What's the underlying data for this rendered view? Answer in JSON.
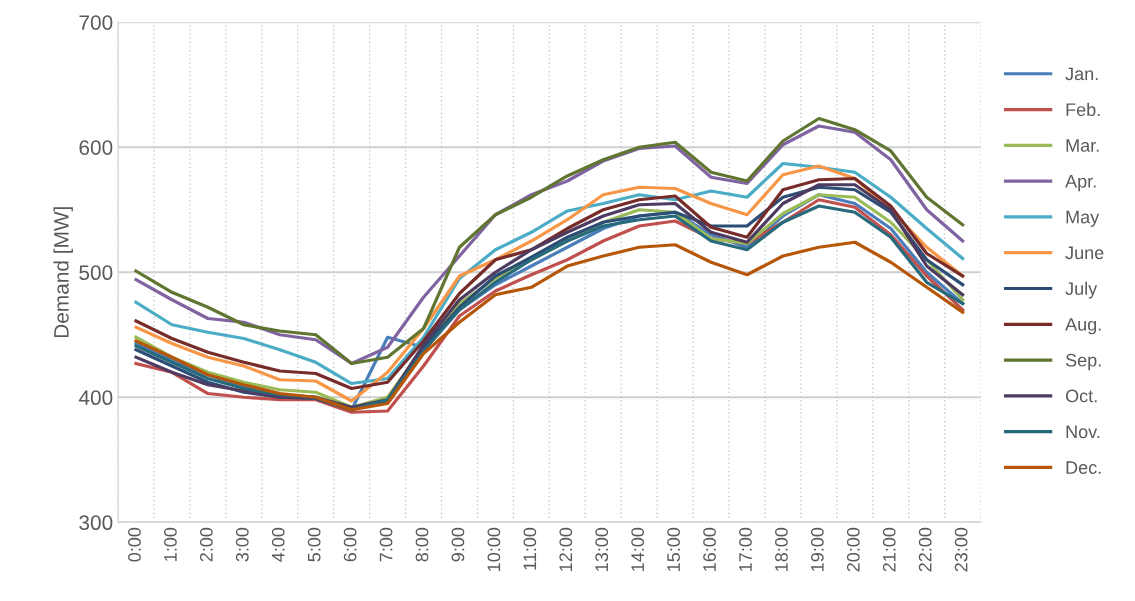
{
  "chart_data": {
    "type": "line",
    "ylabel": "Demand [MW]",
    "categories": [
      "0:00",
      "1:00",
      "2:00",
      "3:00",
      "4:00",
      "5:00",
      "6:00",
      "7:00",
      "8:00",
      "9:00",
      "10:00",
      "11:00",
      "12:00",
      "13:00",
      "14:00",
      "15:00",
      "16:00",
      "17:00",
      "18:00",
      "19:00",
      "20:00",
      "21:00",
      "22:00",
      "23:00"
    ],
    "ylim": [
      300,
      700
    ],
    "yticks": [
      300,
      400,
      500,
      600,
      700
    ],
    "grid": true,
    "legend": "right",
    "marker": "none",
    "line_style": "solid",
    "series": [
      {
        "name": "Jan.",
        "color": "#4a7ebb",
        "values": [
          443,
          430,
          418,
          408,
          402,
          400,
          390,
          448,
          440,
          470,
          490,
          505,
          520,
          535,
          545,
          548,
          530,
          520,
          545,
          562,
          555,
          535,
          500,
          475
        ]
      },
      {
        "name": "Feb.",
        "color": "#c0504d",
        "values": [
          427,
          420,
          403,
          400,
          398,
          398,
          388,
          389,
          425,
          465,
          485,
          498,
          510,
          525,
          537,
          541,
          527,
          523,
          540,
          558,
          552,
          530,
          497,
          470
        ]
      },
      {
        "name": "Mar.",
        "color": "#9bbb59",
        "values": [
          448,
          432,
          420,
          412,
          406,
          404,
          392,
          400,
          440,
          475,
          495,
          510,
          525,
          540,
          550,
          548,
          527,
          523,
          547,
          562,
          560,
          540,
          510,
          478
        ]
      },
      {
        "name": "Apr.",
        "color": "#8064a2",
        "values": [
          494,
          478,
          463,
          460,
          450,
          446,
          427,
          440,
          480,
          513,
          546,
          562,
          573,
          589,
          599,
          601,
          576,
          571,
          602,
          617,
          612,
          590,
          550,
          525
        ]
      },
      {
        "name": "May",
        "color": "#4bacc6",
        "values": [
          476,
          458,
          452,
          447,
          438,
          428,
          411,
          415,
          448,
          495,
          518,
          532,
          549,
          555,
          562,
          558,
          565,
          560,
          587,
          584,
          580,
          560,
          535,
          511
        ]
      },
      {
        "name": "June",
        "color": "#f79646",
        "values": [
          456,
          443,
          432,
          425,
          414,
          413,
          397,
          420,
          455,
          497,
          510,
          525,
          542,
          562,
          568,
          567,
          555,
          546,
          578,
          585,
          575,
          550,
          520,
          497
        ]
      },
      {
        "name": "July",
        "color": "#2c4d75",
        "values": [
          438,
          425,
          412,
          404,
          400,
          399,
          390,
          397,
          440,
          472,
          497,
          512,
          528,
          540,
          545,
          548,
          537,
          537,
          560,
          568,
          566,
          548,
          510,
          490
        ]
      },
      {
        "name": "Aug.",
        "color": "#772c2a",
        "values": [
          461,
          447,
          436,
          428,
          421,
          419,
          407,
          412,
          445,
          483,
          510,
          518,
          535,
          550,
          558,
          561,
          536,
          528,
          566,
          574,
          575,
          553,
          515,
          497
        ]
      },
      {
        "name": "Sep.",
        "color": "#5f7530",
        "values": [
          501,
          484,
          472,
          458,
          453,
          450,
          427,
          432,
          455,
          520,
          546,
          560,
          577,
          590,
          600,
          604,
          580,
          573,
          605,
          623,
          614,
          597,
          560,
          538
        ]
      },
      {
        "name": "Oct.",
        "color": "#4d3b62",
        "values": [
          432,
          420,
          410,
          405,
          400,
          400,
          392,
          398,
          442,
          478,
          500,
          518,
          532,
          545,
          554,
          555,
          532,
          524,
          555,
          570,
          570,
          550,
          505,
          482
        ]
      },
      {
        "name": "Nov.",
        "color": "#276a7c",
        "values": [
          441,
          428,
          415,
          407,
          402,
          400,
          390,
          398,
          437,
          470,
          492,
          510,
          525,
          537,
          542,
          545,
          525,
          518,
          540,
          553,
          548,
          528,
          492,
          475
        ]
      },
      {
        "name": "Dec.",
        "color": "#b65708",
        "values": [
          445,
          432,
          418,
          410,
          403,
          400,
          390,
          395,
          435,
          460,
          482,
          488,
          505,
          513,
          520,
          522,
          508,
          498,
          513,
          520,
          524,
          508,
          488,
          468
        ]
      }
    ]
  }
}
